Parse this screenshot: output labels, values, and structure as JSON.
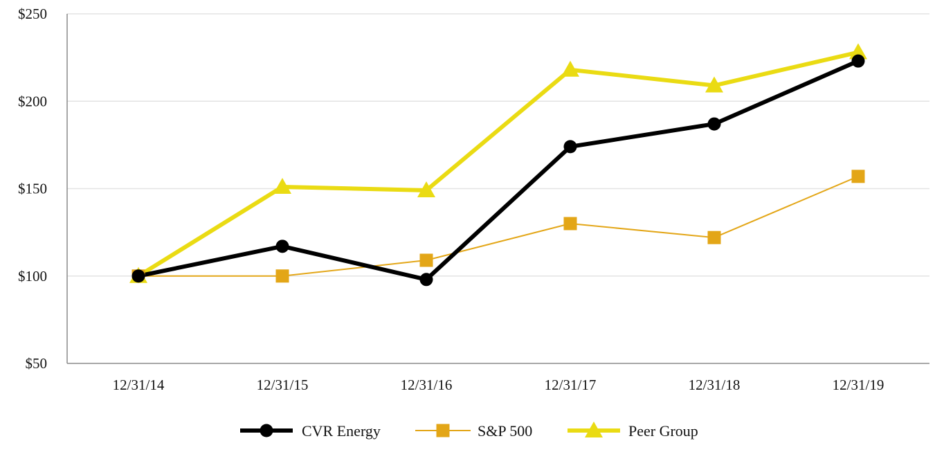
{
  "chart_data": {
    "type": "line",
    "title": "",
    "xlabel": "",
    "ylabel": "",
    "categories": [
      "12/31/14",
      "12/31/15",
      "12/31/16",
      "12/31/17",
      "12/31/18",
      "12/31/19"
    ],
    "ylim": [
      50,
      250
    ],
    "yticks": [
      50,
      100,
      150,
      200,
      250
    ],
    "ytick_labels": [
      "$50",
      "$100",
      "$150",
      "$200",
      "$250"
    ],
    "grid": "horizontal",
    "legend_position": "bottom",
    "series": [
      {
        "name": "CVR Energy",
        "values": [
          100,
          117,
          98,
          174,
          187,
          223
        ],
        "color": "#000000",
        "marker": "circle",
        "line": "thick"
      },
      {
        "name": "S&P 500",
        "values": [
          100,
          100,
          109,
          130,
          122,
          157
        ],
        "color": "#E3A617",
        "marker": "square",
        "line": "thin"
      },
      {
        "name": "Peer Group",
        "values": [
          100,
          151,
          149,
          218,
          209,
          228
        ],
        "color": "#EADB13",
        "marker": "triangle",
        "line": "thick"
      }
    ]
  }
}
